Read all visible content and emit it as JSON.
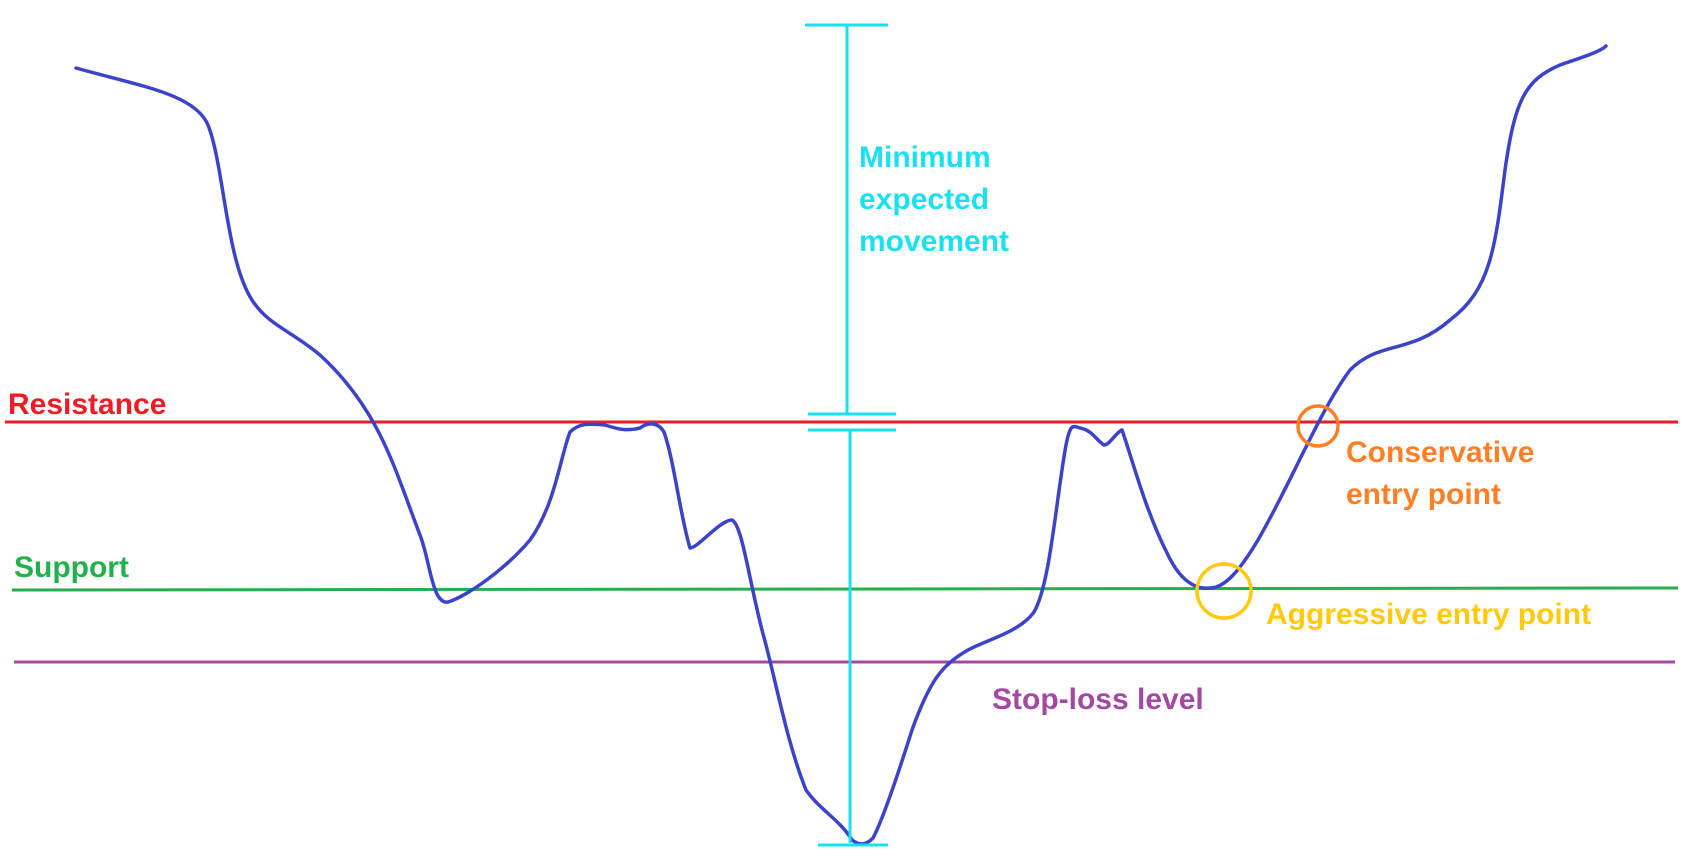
{
  "labels": {
    "resistance": "Resistance",
    "support": "Support",
    "stop_loss": "Stop-loss level",
    "minimum_expected_movement": [
      "Minimum",
      "expected",
      "movement"
    ],
    "conservative_entry": [
      "Conservative",
      "entry point"
    ],
    "aggressive_entry": "Aggressive entry point"
  },
  "colors": {
    "price_line": "#3b44c8",
    "resistance": "#ee1c24",
    "support": "#22b14c",
    "stop_loss": "#a349a4",
    "measure": "#19e1f0",
    "conservative": "#ff7f27",
    "aggressive": "#ffc90e"
  }
}
